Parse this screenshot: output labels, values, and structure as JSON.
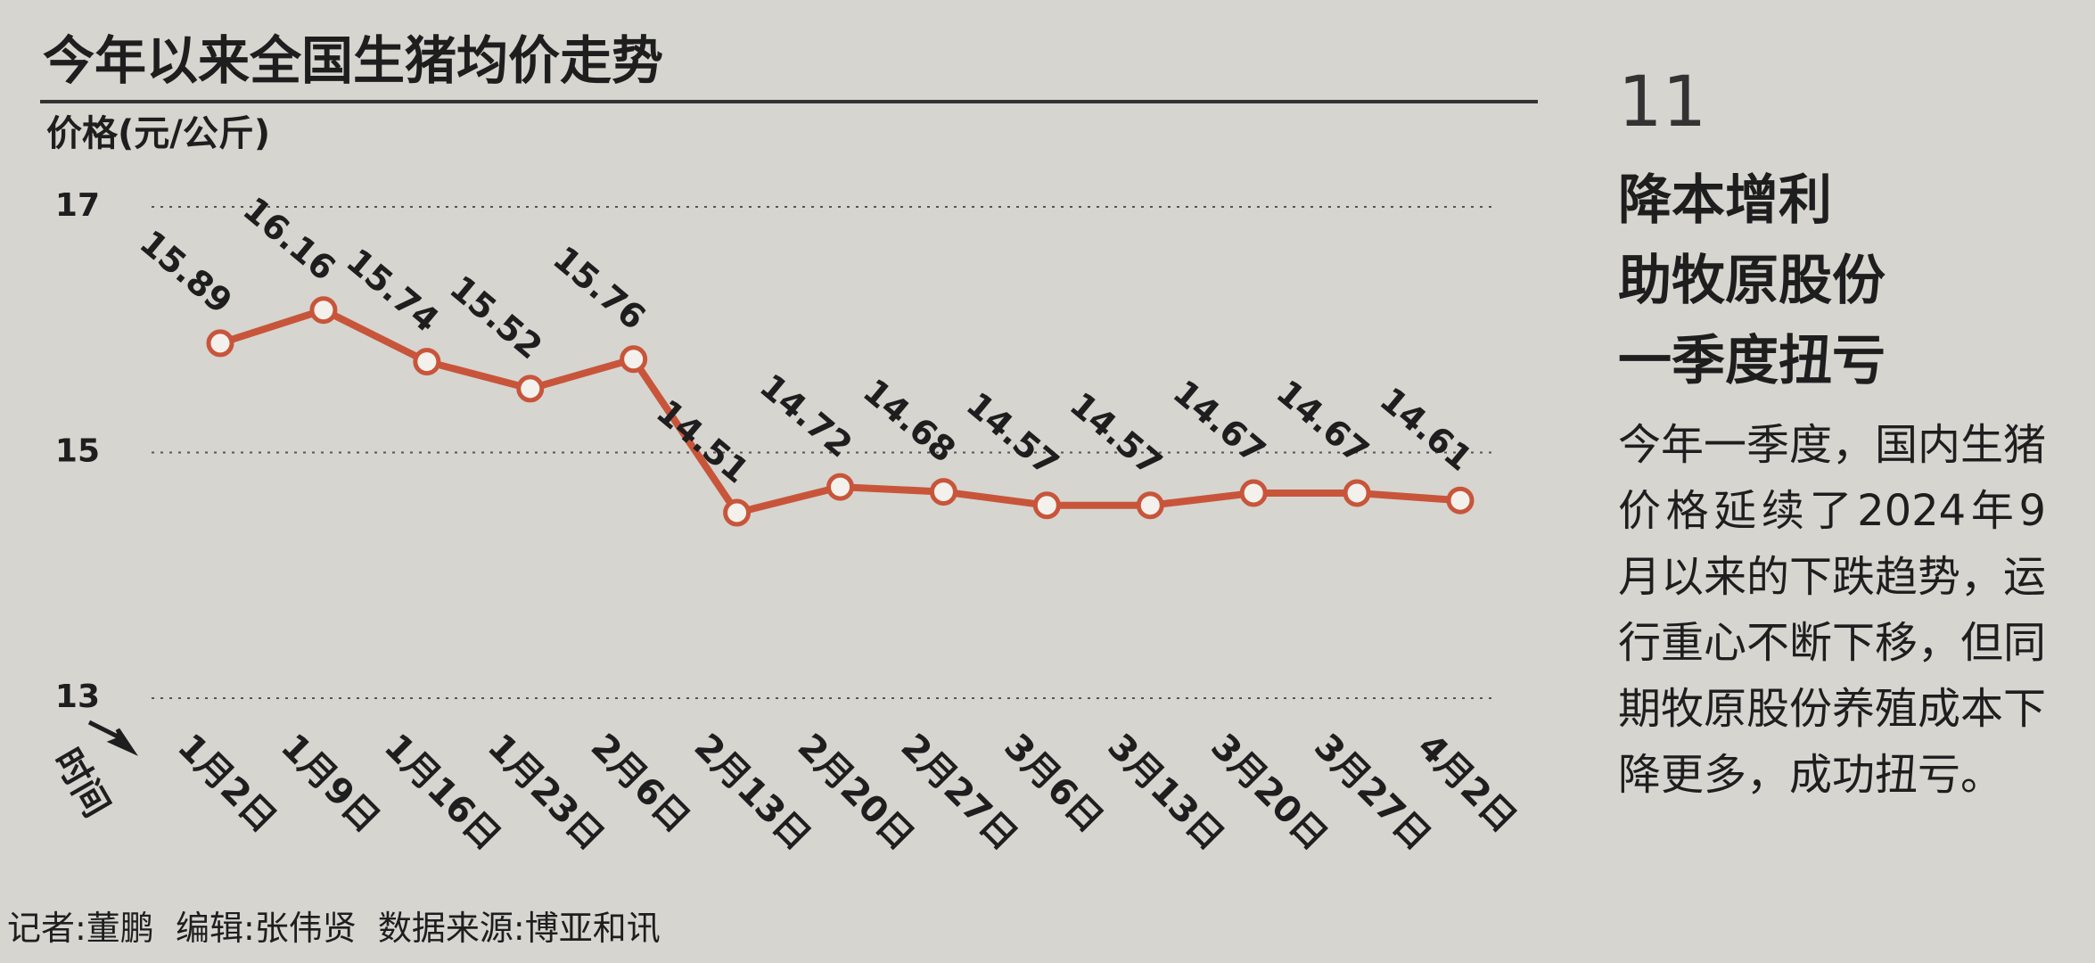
{
  "chart_data": {
    "type": "line",
    "title": "今年以来全国生猪均价走势",
    "y_label": "价格(元/公斤)",
    "x_label": "时间",
    "categories": [
      "1月2日",
      "1月9日",
      "1月16日",
      "1月23日",
      "2月6日",
      "2月13日",
      "2月20日",
      "2月27日",
      "3月6日",
      "3月13日",
      "3月20日",
      "3月27日",
      "4月2日"
    ],
    "values": [
      15.89,
      16.16,
      15.74,
      15.52,
      15.76,
      14.51,
      14.72,
      14.68,
      14.57,
      14.57,
      14.67,
      14.67,
      14.61
    ],
    "color": "#c8553a",
    "ylim": [
      13,
      17
    ],
    "yticks": [
      13,
      15,
      17
    ],
    "grid": true
  },
  "sidebar": {
    "page_number": "11",
    "headline": [
      "降本增利",
      "助牧原股份",
      "一季度扭亏"
    ],
    "body": "今年一季度，国内生猪价格延续了2024年9月以来的下跌趋势，运行重心不断下移，但同期牧原股份养殖成本下降更多，成功扭亏。"
  },
  "credits": "记者:董鹏  编辑:张伟贤  数据来源:博亚和讯"
}
